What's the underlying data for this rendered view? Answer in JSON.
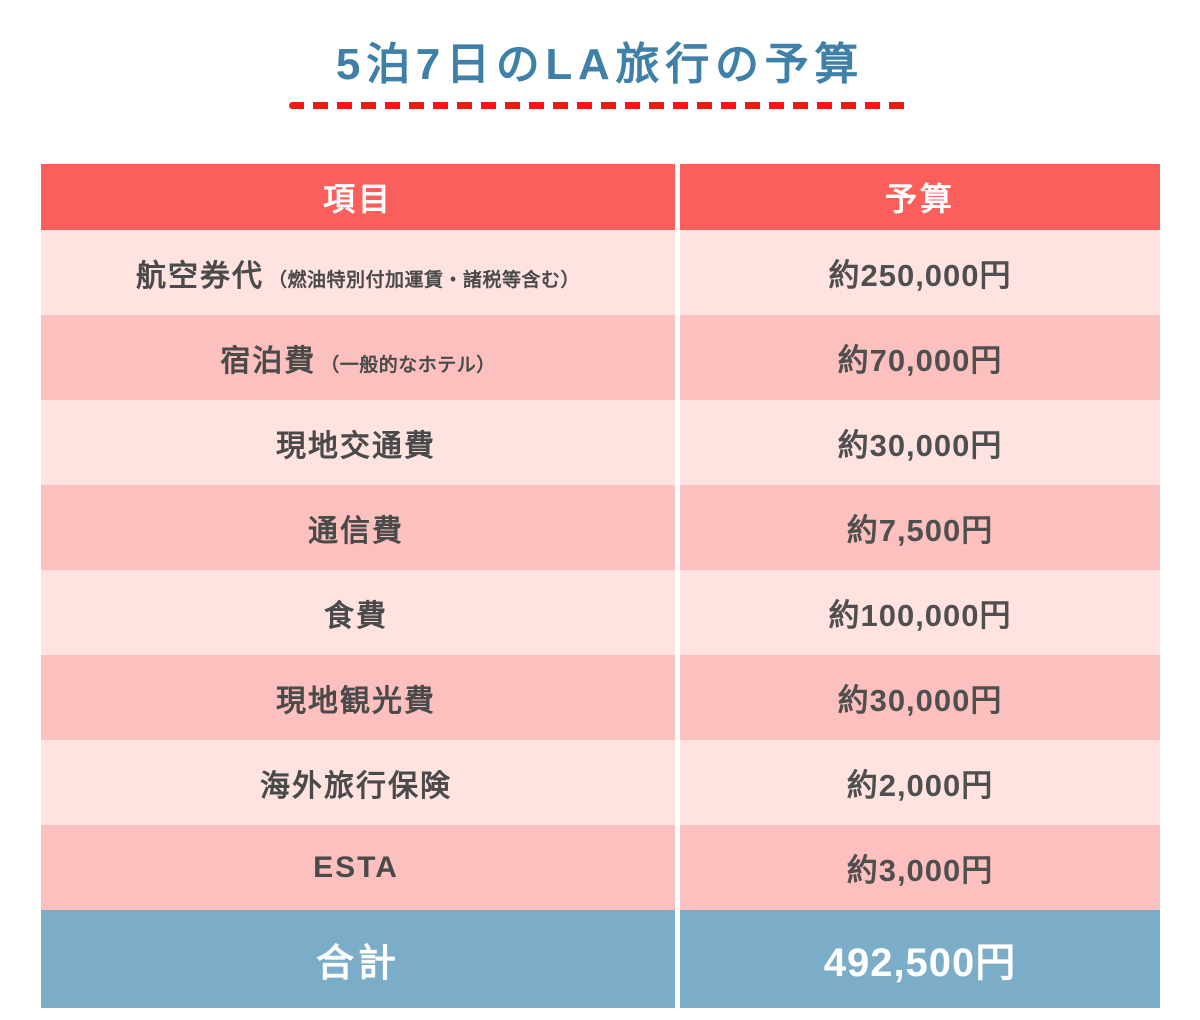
{
  "page": {
    "title": "5泊7日のLA旅行の予算"
  },
  "table": {
    "headers": {
      "item": "項目",
      "budget": "予算"
    },
    "rows": [
      {
        "label": "航空券代",
        "note": "（燃油特別付加運賃・諸税等含む）",
        "value": "約250,000円"
      },
      {
        "label": "宿泊費",
        "note": "（一般的なホテル）",
        "value": "約70,000円"
      },
      {
        "label": "現地交通費",
        "note": "",
        "value": "約30,000円"
      },
      {
        "label": "通信費",
        "note": "",
        "value": "約7,500円"
      },
      {
        "label": "食費",
        "note": "",
        "value": "約100,000円"
      },
      {
        "label": "現地観光費",
        "note": "",
        "value": "約30,000円"
      },
      {
        "label": "海外旅行保険",
        "note": "",
        "value": "約2,000円"
      },
      {
        "label": "ESTA",
        "note": "",
        "value": "約3,000円"
      }
    ],
    "footer": {
      "label": "合計",
      "value": "492,500円"
    }
  },
  "colors": {
    "title_blue": "#3e80a8",
    "underline_red": "#ee1b10",
    "header_red": "#fb5f5c",
    "row_light_pink": "#fee3e1",
    "row_dark_pink": "#fcc1be",
    "footer_blue": "#7badc8",
    "text_dark": "#4a4a4a"
  }
}
